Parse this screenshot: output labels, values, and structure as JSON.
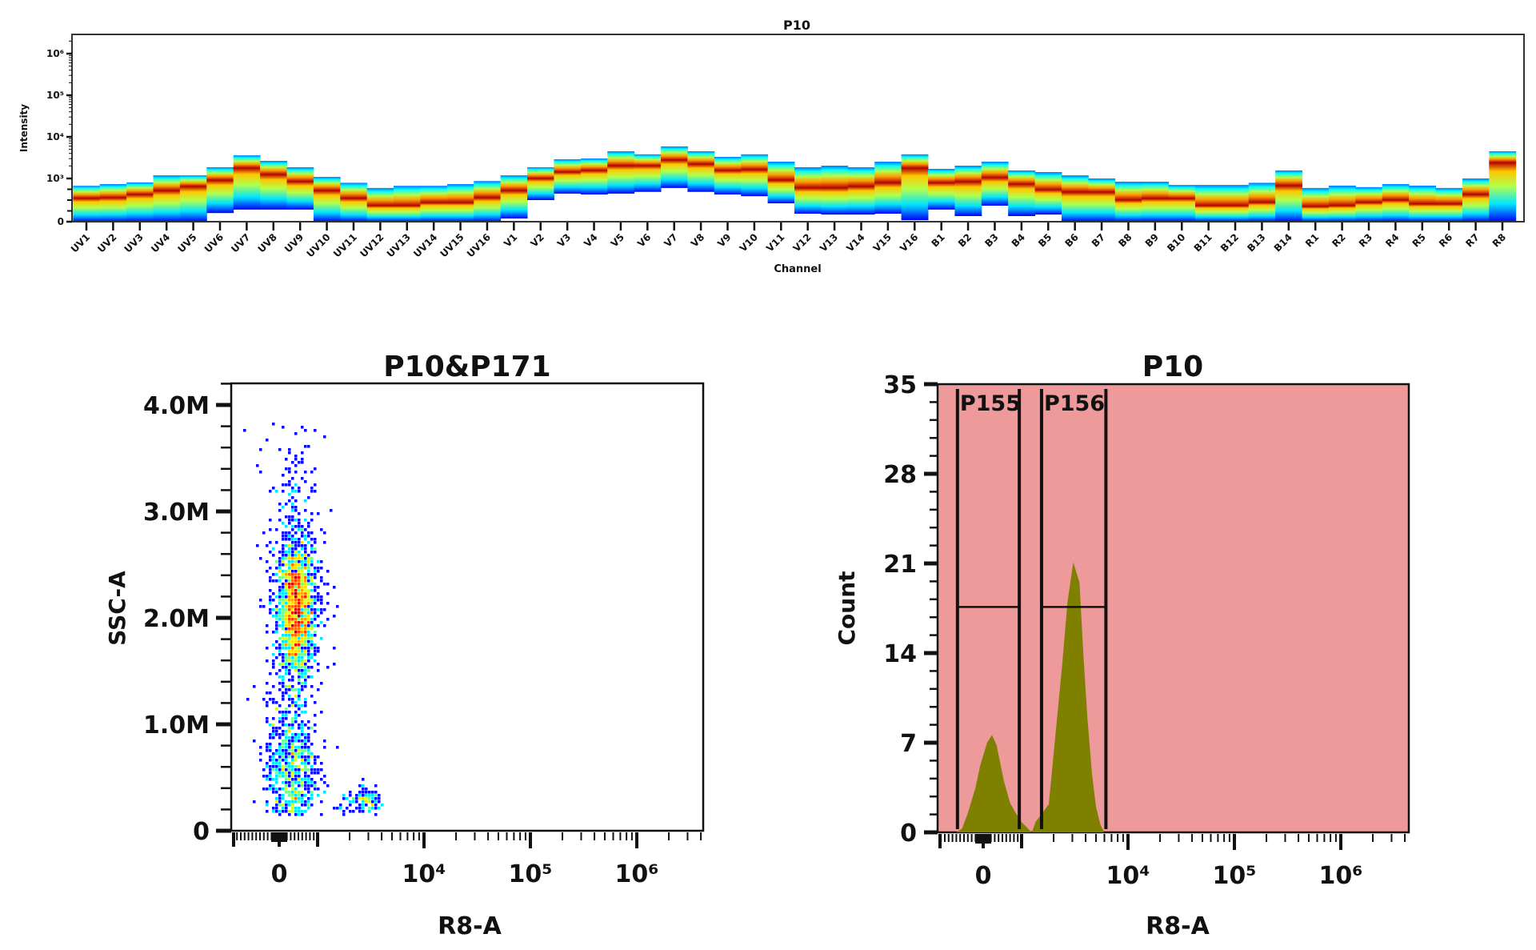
{
  "chart_data": [
    {
      "type": "heatmap",
      "title": "P10",
      "xlabel": "Channel",
      "ylabel": "Intensity",
      "yscale": "biexponential",
      "ylim": [
        0,
        2900000
      ],
      "ytick_labels": [
        "0",
        "10³",
        "10⁴",
        "10⁵",
        "10⁶"
      ],
      "ytick_values": [
        0,
        1000,
        10000,
        100000,
        1000000
      ],
      "colormap": "jet",
      "channels": [
        "UV1",
        "UV2",
        "UV3",
        "UV4",
        "UV5",
        "UV6",
        "UV7",
        "UV8",
        "UV9",
        "UV10",
        "UV11",
        "UV12",
        "UV13",
        "UV14",
        "UV15",
        "UV16",
        "V1",
        "V2",
        "V3",
        "V4",
        "V5",
        "V6",
        "V7",
        "V8",
        "V9",
        "V10",
        "V11",
        "V12",
        "V13",
        "V14",
        "V15",
        "V16",
        "B1",
        "B2",
        "B3",
        "B4",
        "B5",
        "B6",
        "B7",
        "B8",
        "B9",
        "B10",
        "B11",
        "B12",
        "B13",
        "B14",
        "R1",
        "R2",
        "R3",
        "R4",
        "R5",
        "R6",
        "R7",
        "R8"
      ],
      "top": [
        830,
        870,
        910,
        1190,
        1190,
        1860,
        3600,
        2650,
        1860,
        1090,
        900,
        780,
        830,
        830,
        870,
        940,
        1190,
        1860,
        2890,
        3020,
        4500,
        3800,
        5900,
        4500,
        3300,
        3800,
        2530,
        1860,
        2030,
        1860,
        2530,
        3800,
        1700,
        2030,
        2530,
        1560,
        1425,
        1190,
        1000,
        925,
        925,
        850,
        850,
        850,
        900,
        1560,
        780,
        835,
        800,
        870,
        835,
        780,
        1000,
        4500
      ],
      "peak": [
        540,
        555,
        630,
        720,
        815,
        960,
        1780,
        1250,
        930,
        720,
        540,
        370,
        370,
        440,
        440,
        555,
        720,
        1000,
        1425,
        1560,
        2030,
        2030,
        2770,
        2220,
        1560,
        1630,
        960,
        780,
        780,
        815,
        900,
        1780,
        900,
        925,
        1050,
        870,
        740,
        685,
        685,
        500,
        535,
        535,
        370,
        370,
        445,
        835,
        350,
        370,
        445,
        500,
        410,
        410,
        630,
        2420
      ],
      "bottom": [
        0,
        0,
        0,
        0,
        0,
        200,
        280,
        280,
        280,
        0,
        0,
        0,
        0,
        0,
        0,
        0,
        75,
        500,
        650,
        630,
        650,
        690,
        780,
        690,
        630,
        590,
        425,
        185,
        165,
        165,
        185,
        35,
        280,
        130,
        370,
        130,
        165,
        0,
        0,
        0,
        0,
        0,
        0,
        0,
        0,
        0,
        0,
        0,
        0,
        0,
        0,
        0,
        0,
        0
      ]
    },
    {
      "type": "scatter",
      "title": "P10&P171",
      "xlabel": "R8-A",
      "ylabel": "SSC-A",
      "xscale": "biexponential",
      "xtick_labels": [
        "0",
        "10⁴",
        "10⁵",
        "10⁶"
      ],
      "xtick_values": [
        0,
        10000,
        100000,
        1000000
      ],
      "xlim": [
        -1250,
        4000000
      ],
      "ytick_labels": [
        "0",
        "1.0M",
        "2.0M",
        "3.0M",
        "4.0M"
      ],
      "ytick_values": [
        0,
        1000000,
        2000000,
        3000000,
        4000000
      ],
      "ylim": [
        0,
        4200000
      ],
      "colormap": "jet density",
      "populations": [
        {
          "x_center": 450,
          "x_sd": 230,
          "y_center": 2050000,
          "y_sd": 330000,
          "n": 1500
        },
        {
          "x_center": 420,
          "x_sd": 380,
          "y_center": 2300000,
          "y_sd": 700000,
          "n": 520
        },
        {
          "x_center": 320,
          "x_sd": 330,
          "y_center": 550000,
          "y_sd": 330000,
          "n": 750
        },
        {
          "x_center": 2900,
          "x_sd": 650,
          "y_center": 270000,
          "y_sd": 60000,
          "n": 120
        }
      ]
    },
    {
      "type": "area",
      "title": "P10",
      "xlabel": "R8-A",
      "ylabel": "Count",
      "xscale": "biexponential",
      "xtick_labels": [
        "0",
        "10⁴",
        "10⁵",
        "10⁶"
      ],
      "xtick_values": [
        0,
        10000,
        100000,
        1000000
      ],
      "xlim": [
        -1200,
        4000000
      ],
      "ytick_labels": [
        "0",
        "7",
        "14",
        "21",
        "28",
        "35"
      ],
      "ytick_values": [
        0,
        7,
        14,
        21,
        28,
        35
      ],
      "ylim": [
        0,
        35
      ],
      "background": "#ee9a9a",
      "fill": "#808000",
      "x": [
        -700,
        -550,
        -400,
        -200,
        -80,
        100,
        230,
        350,
        540,
        700,
        850,
        1000,
        1150,
        1250,
        1350,
        1600,
        1800,
        2100,
        2400,
        2700,
        3060,
        3500,
        3800,
        4150,
        4600,
        5000,
        5500,
        5900
      ],
      "count": [
        0,
        0.3,
        1.5,
        3.5,
        5.2,
        7.0,
        7.6,
        6.8,
        4.0,
        2.3,
        1.5,
        0.8,
        0.3,
        0,
        0.8,
        1.6,
        2.2,
        8,
        13,
        18,
        21.1,
        19.5,
        14,
        9,
        4.5,
        2,
        0.6,
        0.1
      ],
      "gates": [
        {
          "name": "P155",
          "x_min": -670,
          "x_max": 940,
          "level": 17.6
        },
        {
          "name": "P156",
          "x_min": 1540,
          "x_max": 6200,
          "level": 17.6
        }
      ]
    }
  ]
}
